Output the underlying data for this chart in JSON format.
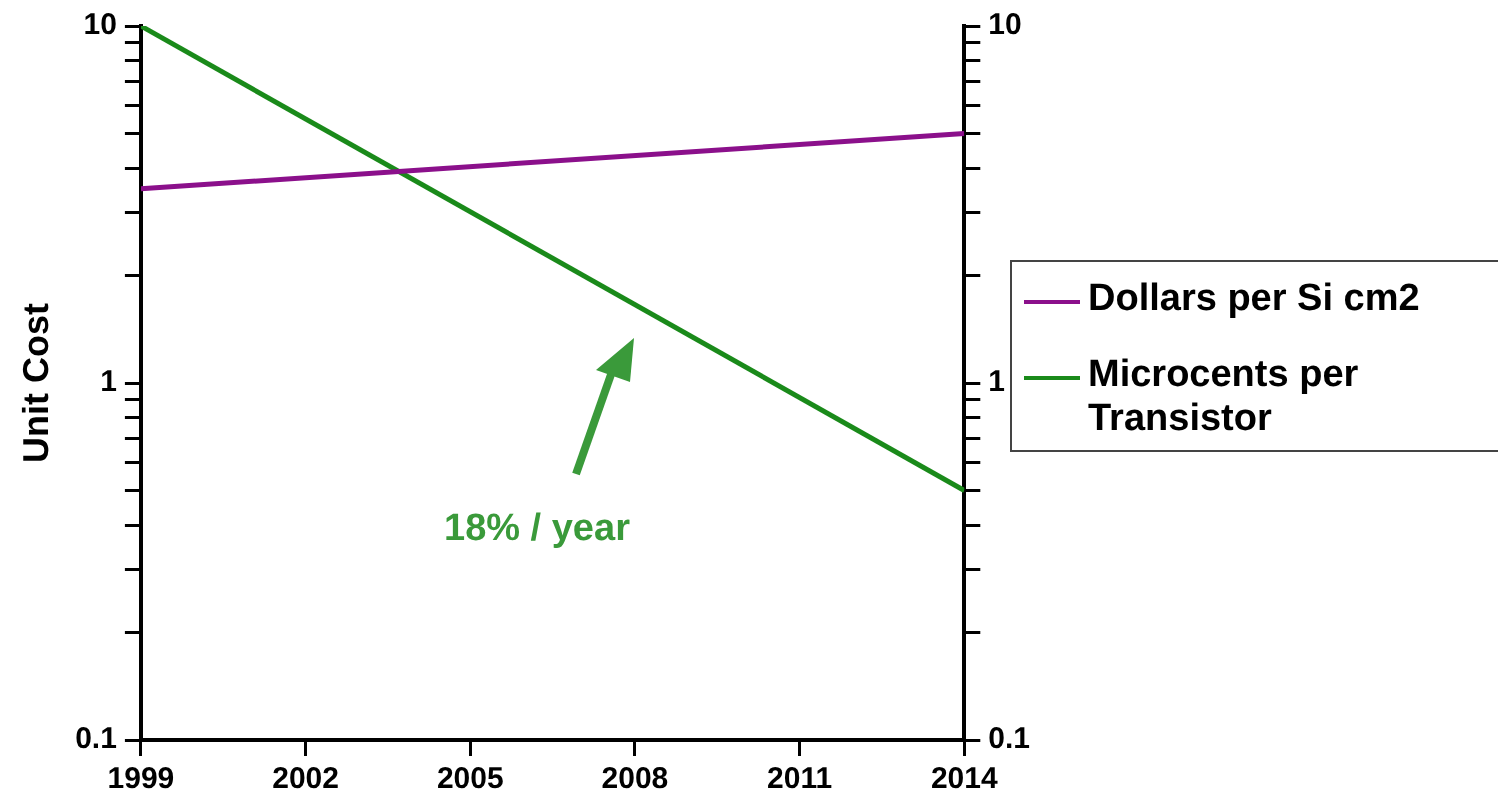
{
  "chart_data": {
    "type": "line",
    "ylabel": "Unit Cost",
    "x": [
      1999,
      2014
    ],
    "series": [
      {
        "name": "Dollars per Si cm2",
        "color": "#8b108b",
        "values": [
          3.5,
          5
        ]
      },
      {
        "name": "Microcents per Transistor",
        "color": "#1a8a1a",
        "values": [
          10,
          0.5
        ]
      }
    ],
    "xlim": [
      1999,
      2014
    ],
    "xticks": [
      1999,
      2002,
      2005,
      2008,
      2011,
      2014
    ],
    "log": "y",
    "ylim": [
      0.1,
      10
    ],
    "yticks": [
      {
        "value": 0.1,
        "label": "0.1"
      },
      {
        "value": 0.2,
        "label": null
      },
      {
        "value": 0.3,
        "label": null
      },
      {
        "value": 0.4,
        "label": null
      },
      {
        "value": 0.5,
        "label": null
      },
      {
        "value": 0.6,
        "label": null
      },
      {
        "value": 0.7,
        "label": null
      },
      {
        "value": 0.8,
        "label": null
      },
      {
        "value": 0.9,
        "label": null
      },
      {
        "value": 1,
        "label": "1"
      },
      {
        "value": 2,
        "label": null
      },
      {
        "value": 3,
        "label": null
      },
      {
        "value": 4,
        "label": null
      },
      {
        "value": 5,
        "label": null
      },
      {
        "value": 6,
        "label": null
      },
      {
        "value": 7,
        "label": null
      },
      {
        "value": 8,
        "label": null
      },
      {
        "value": 9,
        "label": null
      },
      {
        "value": 10,
        "label": "10"
      }
    ],
    "annotations": [
      "18% / year"
    ],
    "grid": false,
    "legend": "right",
    "marker": "none",
    "line_style": "solid"
  }
}
